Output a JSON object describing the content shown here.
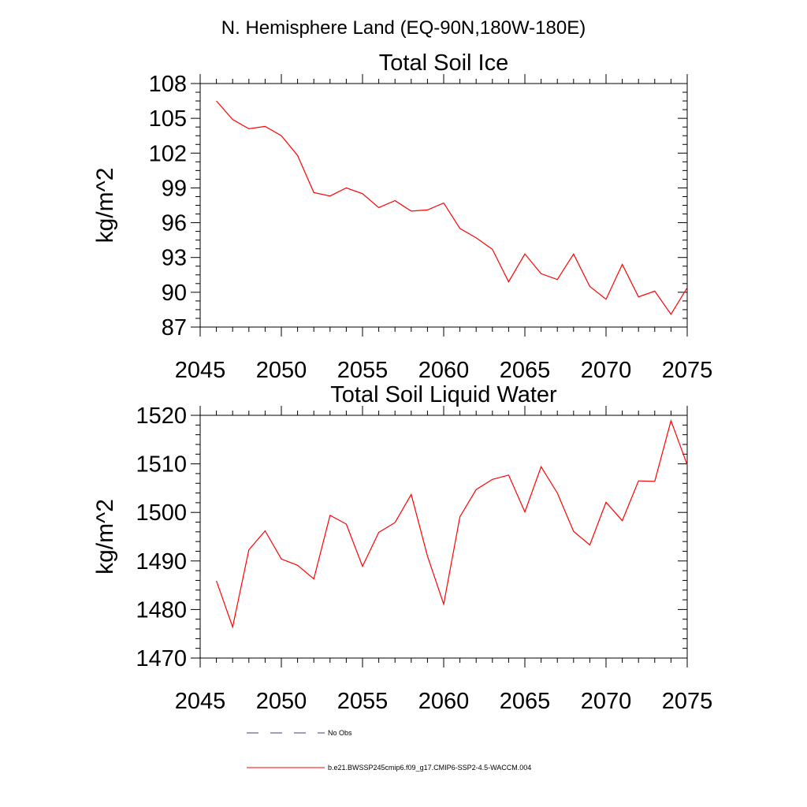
{
  "header": "N. Hemisphere Land (EQ-90N,180W-180E)",
  "chart_data": [
    {
      "type": "line",
      "title": "Total Soil Ice",
      "ylabel": "kg/m^2",
      "xlabel": "",
      "xlim": [
        2045,
        2075
      ],
      "ylim": [
        87,
        108
      ],
      "xticks": [
        2045,
        2050,
        2055,
        2060,
        2065,
        2070,
        2075
      ],
      "yticks": [
        87,
        90,
        93,
        96,
        99,
        102,
        105,
        108
      ],
      "grid": false,
      "series": [
        {
          "name": "b.e21.BWSSP245cmip6.f09_g17.CMIP6-SSP2-4.5-WACCM.004",
          "color": "#ff0000",
          "x": [
            2046,
            2047,
            2048,
            2049,
            2050,
            2051,
            2052,
            2053,
            2054,
            2055,
            2056,
            2057,
            2058,
            2059,
            2060,
            2061,
            2062,
            2063,
            2064,
            2065,
            2066,
            2067,
            2068,
            2069,
            2070,
            2071,
            2072,
            2073,
            2074,
            2075
          ],
          "y": [
            106.5,
            104.9,
            104.1,
            104.3,
            103.5,
            101.8,
            98.6,
            98.3,
            99.0,
            98.5,
            97.3,
            97.9,
            97.0,
            97.1,
            97.7,
            95.5,
            94.7,
            93.7,
            90.9,
            93.3,
            91.6,
            91.1,
            93.3,
            90.5,
            89.4,
            92.4,
            89.6,
            90.1,
            88.1,
            90.4
          ]
        }
      ]
    },
    {
      "type": "line",
      "title": "Total Soil Liquid Water",
      "ylabel": "kg/m^2",
      "xlabel": "",
      "xlim": [
        2045,
        2075
      ],
      "ylim": [
        1470,
        1520
      ],
      "xticks": [
        2045,
        2050,
        2055,
        2060,
        2065,
        2070,
        2075
      ],
      "yticks": [
        1470,
        1480,
        1490,
        1500,
        1510,
        1520
      ],
      "grid": false,
      "series": [
        {
          "name": "b.e21.BWSSP245cmip6.f09_g17.CMIP6-SSP2-4.5-WACCM.004",
          "color": "#ff0000",
          "x": [
            2046,
            2047,
            2048,
            2049,
            2050,
            2051,
            2052,
            2053,
            2054,
            2055,
            2056,
            2057,
            2058,
            2059,
            2060,
            2061,
            2062,
            2063,
            2064,
            2065,
            2066,
            2067,
            2068,
            2069,
            2070,
            2071,
            2072,
            2073,
            2074,
            2075
          ],
          "y": [
            1485.9,
            1476.4,
            1492.3,
            1496.2,
            1490.4,
            1489.1,
            1486.3,
            1499.4,
            1497.6,
            1488.9,
            1495.9,
            1497.9,
            1503.7,
            1491.0,
            1481.1,
            1499.1,
            1504.7,
            1506.8,
            1507.7,
            1500.1,
            1509.4,
            1504.0,
            1496.1,
            1493.3,
            1502.1,
            1498.3,
            1506.5,
            1506.4,
            1518.9,
            1509.8
          ]
        }
      ]
    }
  ],
  "legend": [
    {
      "label": "No Obs",
      "color": "#3b3b8c",
      "style": "dashed"
    },
    {
      "label": "b.e21.BWSSP245cmip6.f09_g17.CMIP6-SSP2-4.5-WACCM.004",
      "color": "#ff0000",
      "style": "solid"
    }
  ]
}
